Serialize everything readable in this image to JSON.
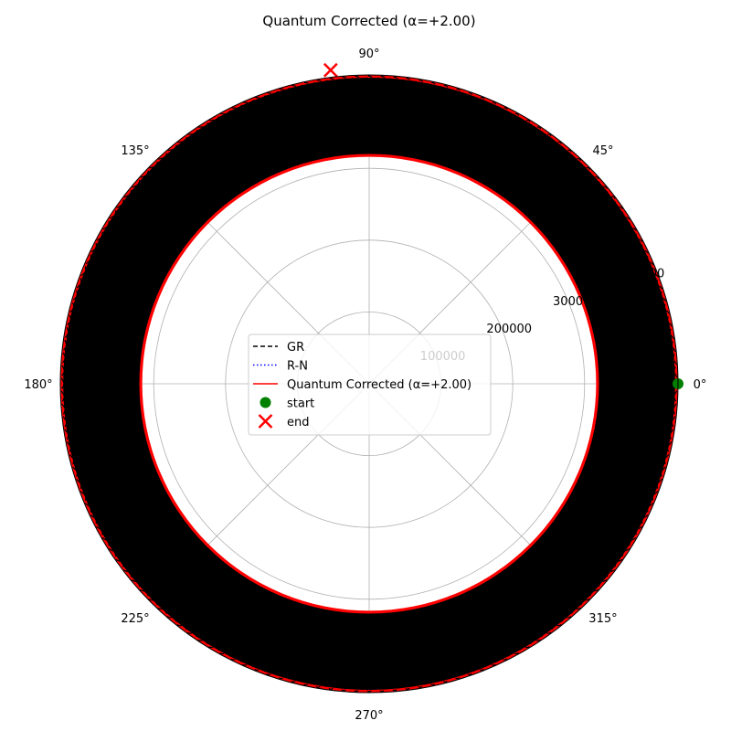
{
  "chart_data": {
    "type": "polar-line",
    "title": "Quantum Corrected (α=+2.00)",
    "angle_ticks": [
      "0°",
      "45°",
      "90°",
      "135°",
      "180°",
      "225°",
      "270°",
      "315°"
    ],
    "angle_tick_degrees": [
      0,
      45,
      90,
      135,
      180,
      225,
      270,
      315
    ],
    "radial_ticks": [
      100000,
      200000,
      300000,
      400000
    ],
    "radial_tick_labels": [
      "100000",
      "200000",
      "300000",
      "400000"
    ],
    "radial_label_angle_deg": 22.5,
    "rlim": [
      0,
      430000
    ],
    "grid": true,
    "series": [
      {
        "name": "GR",
        "style": "dashed",
        "color": "#000000",
        "r_min": 320000,
        "r_max": 430000
      },
      {
        "name": "R-N",
        "style": "dotted",
        "color": "#0000ff",
        "r_min": 320000,
        "r_max": 430000
      },
      {
        "name": "Quantum Corrected (α=+2.00)",
        "style": "solid",
        "color": "#ff0000",
        "r_min": 320000,
        "r_max": 445000
      }
    ],
    "start": {
      "label": "start",
      "theta_deg": 0,
      "r": 430000,
      "color": "#008000"
    },
    "end": {
      "label": "end",
      "theta_deg": 97,
      "r": 440000,
      "color": "#ff0000"
    },
    "legend": {
      "placement": "center",
      "entries": [
        "GR",
        "R-N",
        "Quantum Corrected (α=+2.00)",
        "start",
        "end"
      ]
    }
  }
}
